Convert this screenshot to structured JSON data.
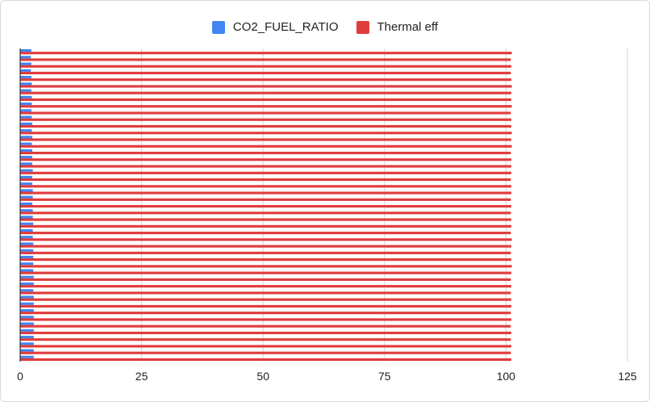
{
  "chart_data": {
    "type": "bar",
    "orientation": "horizontal",
    "title": "",
    "xlabel": "",
    "ylabel": "",
    "xlim": [
      0,
      125
    ],
    "xticks": [
      0,
      25,
      50,
      75,
      100,
      125
    ],
    "grid": true,
    "legend_position": "top",
    "series": [
      {
        "name": "CO2_FUEL_RATIO",
        "color": "#4285f4",
        "values": [
          2.3,
          2.2,
          2.3,
          2.2,
          2.3,
          2.4,
          2.3,
          2.4,
          2.4,
          2.3,
          2.4,
          2.5,
          2.4,
          2.5,
          2.4,
          2.5,
          2.5,
          2.5,
          2.6,
          2.5,
          2.5,
          2.6,
          2.6,
          2.5,
          2.6,
          2.6,
          2.7,
          2.6,
          2.6,
          2.7,
          2.7,
          2.7,
          2.7,
          2.7,
          2.8,
          2.8,
          2.7,
          2.8,
          2.8,
          2.8,
          2.8,
          2.8,
          2.8,
          2.8,
          2.8,
          2.8,
          2.8
        ]
      },
      {
        "name": "Thermal eff",
        "color": "#e03c3c",
        "values": [
          101.2,
          101.0,
          101.1,
          101.0,
          101.1,
          101.2,
          101.1,
          101.1,
          101.2,
          101.0,
          101.1,
          101.1,
          101.2,
          101.1,
          101.2,
          101.0,
          101.1,
          101.1,
          101.1,
          101.0,
          101.1,
          101.1,
          101.0,
          101.1,
          101.0,
          101.1,
          101.1,
          101.0,
          101.2,
          101.1,
          101.0,
          101.1,
          101.2,
          101.1,
          101.0,
          101.1,
          101.0,
          101.1,
          101.1,
          101.0,
          101.1,
          101.0,
          101.1,
          101.0,
          101.1,
          101.0,
          101.1
        ]
      }
    ]
  }
}
